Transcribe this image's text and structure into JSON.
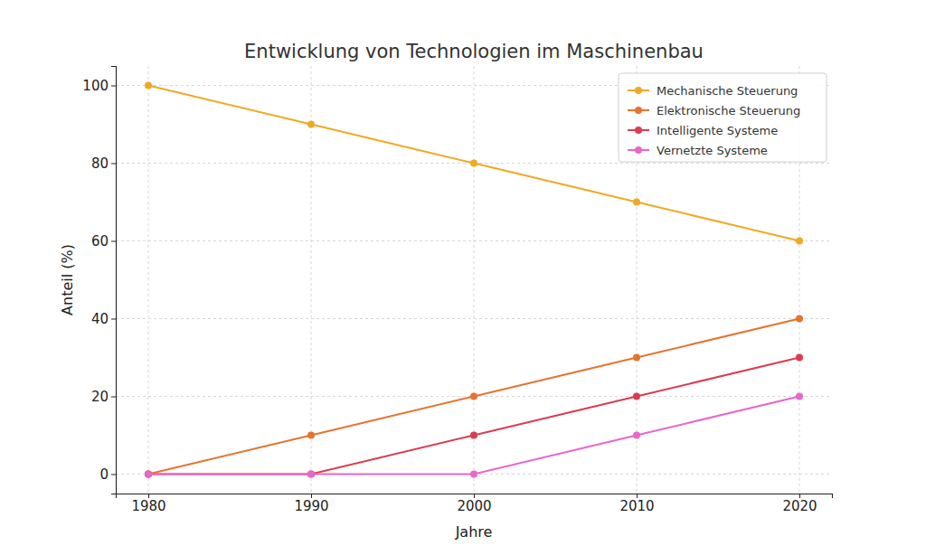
{
  "chart_data": {
    "type": "line",
    "title": "Entwicklung von Technologien im Maschinenbau",
    "x_label": "Jahre",
    "y_label": "Anteil (%)",
    "x": [
      1980,
      1990,
      2000,
      2010,
      2020
    ],
    "series": [
      {
        "name": "Mechanische Steuerung",
        "color": "#f0a923",
        "values": [
          100,
          90,
          80,
          70,
          60
        ]
      },
      {
        "name": "Elektronische Steuerung",
        "color": "#e5742f",
        "values": [
          0,
          10,
          20,
          30,
          40
        ]
      },
      {
        "name": "Intelligente Systeme",
        "color": "#da3d52",
        "values": [
          0,
          0,
          10,
          20,
          30
        ]
      },
      {
        "name": "Vernetzte Systeme",
        "color": "#e867c9",
        "values": [
          0,
          0,
          0,
          10,
          20
        ]
      }
    ],
    "xlim": [
      1978,
      2022
    ],
    "ylim": [
      -5,
      105
    ],
    "xticks": [
      1980,
      1990,
      2000,
      2010,
      2020
    ],
    "yticks": [
      0,
      20,
      40,
      60,
      80,
      100
    ],
    "grid": true,
    "legend": "upper right",
    "marker": "circle"
  }
}
